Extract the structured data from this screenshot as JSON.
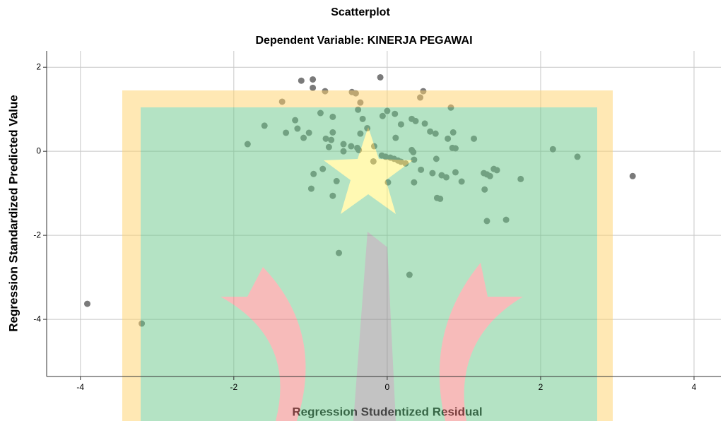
{
  "chart_data": {
    "type": "scatter",
    "title": "Scatterplot",
    "subtitle": "Dependent Variable: KINERJA PEGAWAI",
    "x_label": "Regression Studentized Residual",
    "y_label": "Regression Standardized Predicted Value",
    "xlim": [
      -4.44,
      4.35
    ],
    "ylim": [
      -5.36,
      2.39
    ],
    "xticks": [
      -4,
      -2,
      0,
      2,
      4
    ],
    "yticks": [
      -4,
      -2,
      0,
      2
    ],
    "grid": true,
    "series": [
      {
        "color": "#7a7a7a",
        "x": [
          -1.12,
          -0.97,
          -0.97,
          -0.09,
          -0.81,
          -1.37,
          -0.46,
          -0.41,
          -0.35,
          0.47,
          0.43,
          0.83,
          -0.38,
          0,
          0.1,
          -0.87,
          -0.71,
          -1.2,
          -1.6,
          -1.17,
          -1.32,
          -1.02,
          -1.09,
          -0.71,
          -0.8,
          -0.73,
          -0.32,
          -0.06,
          0.32,
          0.37,
          0.18,
          0.49,
          0.56,
          0.63,
          0.86,
          0.79,
          1.13,
          0.11,
          -0.26,
          -0.35,
          -1.82,
          -0.76,
          -0.57,
          -0.57,
          -0.47,
          -0.39,
          -0.37,
          -0.17,
          0.85,
          0.89,
          0.32,
          0.34,
          -0.07,
          -0.02,
          0.04,
          0.09,
          0.14,
          0.18,
          0.24,
          -0.18,
          0.35,
          0.64,
          2.16,
          2.48,
          3.2,
          -0.84,
          -0.96,
          0.44,
          0.59,
          0.71,
          0.89,
          0.97,
          0.77,
          1.26,
          1.3,
          1.34,
          1.39,
          1.43,
          1.74,
          -0.66,
          0.01,
          0.35,
          -0.99,
          -0.71,
          0.65,
          0.69,
          1.27,
          1.3,
          1.55,
          -0.63,
          0.29,
          -3.91,
          -3.2
        ],
        "values": [
          1.68,
          1.71,
          1.51,
          1.76,
          1.43,
          1.18,
          1.41,
          1.38,
          1.16,
          1.43,
          1.28,
          1.04,
          0.99,
          0.96,
          0.89,
          0.91,
          0.82,
          0.74,
          0.61,
          0.54,
          0.44,
          0.44,
          0.32,
          0.45,
          0.3,
          0.27,
          0.77,
          0.84,
          0.77,
          0.72,
          0.64,
          0.66,
          0.47,
          0.42,
          0.45,
          0.3,
          0.3,
          0.32,
          0.55,
          0.42,
          0.17,
          0.1,
          0.17,
          0.0,
          0.12,
          0.08,
          0.03,
          0.12,
          0.08,
          0.07,
          0.03,
          -0.02,
          -0.1,
          -0.13,
          -0.15,
          -0.18,
          -0.22,
          -0.25,
          -0.29,
          -0.24,
          -0.2,
          -0.18,
          0.05,
          -0.13,
          -0.59,
          -0.42,
          -0.54,
          -0.44,
          -0.52,
          -0.57,
          -0.5,
          -0.72,
          -0.62,
          -0.52,
          -0.55,
          -0.59,
          -0.42,
          -0.45,
          -0.66,
          -0.71,
          -0.74,
          -0.74,
          -0.89,
          -1.06,
          -1.11,
          -1.13,
          -0.91,
          -1.66,
          -1.63,
          -2.42,
          -2.94,
          -3.63,
          -4.1
        ]
      }
    ]
  }
}
